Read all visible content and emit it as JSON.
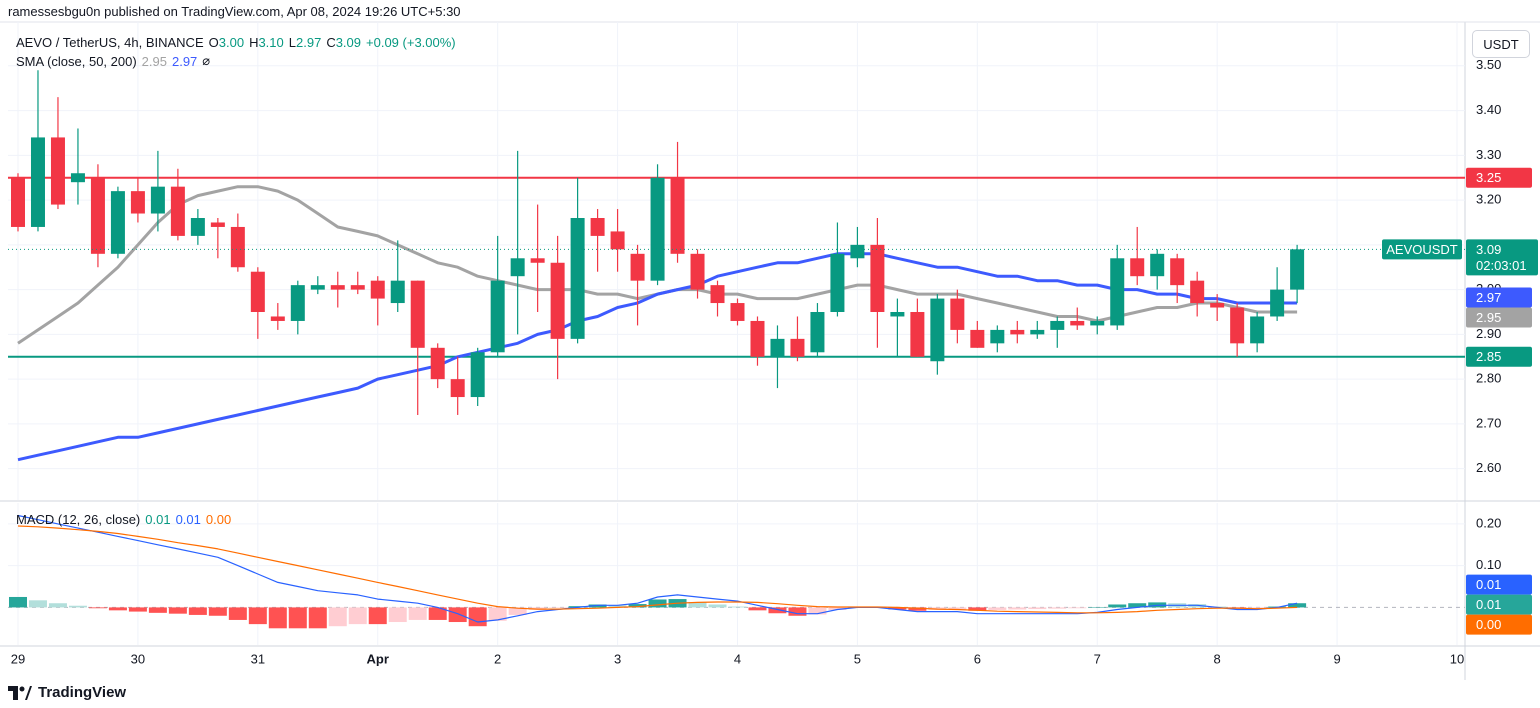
{
  "header": {
    "publisher": "ramessesbgu0n published on TradingView.com, Apr 08, 2024 19:26 UTC+5:30"
  },
  "footer": {
    "brand": "TradingView"
  },
  "chart_data": {
    "type": "candlestick",
    "title": "AEVO / TetherUS, 4h, BINANCE",
    "ohlc_legend": [
      {
        "key": "O",
        "value": "3.00"
      },
      {
        "key": "H",
        "value": "3.10"
      },
      {
        "key": "L",
        "value": "2.97"
      },
      {
        "key": "C",
        "value": "3.09"
      }
    ],
    "change": "+0.09 (+3.00%)",
    "unit": "USDT",
    "up_color": "#089981",
    "down_color": "#f23645",
    "x": [
      0,
      1,
      2,
      3,
      4,
      5,
      6,
      7,
      8,
      9,
      10,
      11,
      12,
      13,
      14,
      15,
      16,
      17,
      18,
      19,
      20,
      21,
      22,
      23,
      24,
      25,
      26,
      27,
      28,
      29,
      30,
      31,
      32,
      33,
      34,
      35,
      36,
      37,
      38,
      39,
      40,
      41,
      42,
      43,
      44,
      45,
      46,
      47,
      48,
      49,
      50,
      51,
      52,
      53,
      54,
      55,
      56,
      57,
      58,
      59,
      60,
      61,
      62,
      63,
      64
    ],
    "xlim": [
      -0.5,
      72.4
    ],
    "xticks": [
      {
        "value": 0,
        "label": "29"
      },
      {
        "value": 6,
        "label": "30"
      },
      {
        "value": 12,
        "label": "31"
      },
      {
        "value": 18,
        "label": "Apr"
      },
      {
        "value": 24,
        "label": "2"
      },
      {
        "value": 30,
        "label": "3"
      },
      {
        "value": 36,
        "label": "4"
      },
      {
        "value": 42,
        "label": "5"
      },
      {
        "value": 48,
        "label": "6"
      },
      {
        "value": 54,
        "label": "7"
      },
      {
        "value": 60,
        "label": "8"
      },
      {
        "value": 66,
        "label": "9"
      },
      {
        "value": 72,
        "label": "10"
      }
    ],
    "open": [
      3.25,
      3.14,
      3.34,
      3.24,
      3.25,
      3.08,
      3.22,
      3.17,
      3.23,
      3.12,
      3.15,
      3.14,
      3.04,
      2.94,
      2.93,
      3.0,
      3.01,
      3.01,
      3.02,
      2.97,
      3.02,
      2.87,
      2.8,
      2.76,
      2.86,
      3.03,
      3.07,
      3.06,
      2.89,
      3.16,
      3.13,
      3.08,
      3.02,
      3.25,
      3.08,
      3.01,
      2.97,
      2.93,
      2.85,
      2.89,
      2.86,
      2.95,
      3.07,
      3.1,
      2.94,
      2.95,
      2.84,
      2.98,
      2.91,
      2.88,
      2.91,
      2.9,
      2.91,
      2.93,
      2.92,
      2.92,
      3.07,
      3.03,
      3.07,
      3.02,
      2.97,
      2.96,
      2.88,
      2.94,
      3.0
    ],
    "high": [
      3.26,
      3.49,
      3.43,
      3.36,
      3.28,
      3.23,
      3.25,
      3.31,
      3.27,
      3.18,
      3.16,
      3.17,
      3.05,
      2.97,
      3.02,
      3.03,
      3.04,
      3.04,
      3.03,
      3.11,
      3.02,
      2.88,
      2.85,
      2.87,
      3.12,
      3.31,
      3.19,
      3.12,
      3.25,
      3.18,
      3.18,
      3.1,
      3.28,
      3.33,
      3.09,
      3.02,
      2.98,
      2.94,
      2.92,
      2.94,
      2.97,
      3.15,
      3.14,
      3.16,
      2.98,
      2.98,
      2.99,
      3.0,
      2.93,
      2.92,
      2.93,
      2.93,
      2.94,
      2.96,
      2.94,
      3.1,
      3.14,
      3.09,
      3.08,
      3.04,
      2.99,
      2.97,
      2.95,
      3.05,
      3.1
    ],
    "low": [
      3.13,
      3.13,
      3.18,
      3.19,
      3.05,
      3.07,
      3.15,
      3.13,
      3.11,
      3.1,
      3.07,
      3.04,
      2.89,
      2.91,
      2.9,
      2.99,
      2.96,
      2.99,
      2.92,
      2.95,
      2.72,
      2.78,
      2.72,
      2.74,
      2.85,
      2.9,
      2.95,
      2.8,
      2.88,
      3.04,
      3.04,
      2.92,
      3.01,
      3.06,
      2.98,
      2.94,
      2.92,
      2.83,
      2.78,
      2.84,
      2.85,
      2.94,
      3.05,
      2.87,
      2.85,
      2.85,
      2.81,
      2.88,
      2.87,
      2.86,
      2.88,
      2.89,
      2.87,
      2.91,
      2.9,
      2.91,
      3.01,
      3.0,
      2.97,
      2.94,
      2.93,
      2.85,
      2.86,
      2.93,
      2.97
    ],
    "close": [
      3.14,
      3.34,
      3.19,
      3.26,
      3.08,
      3.22,
      3.17,
      3.23,
      3.12,
      3.16,
      3.14,
      3.05,
      2.95,
      2.93,
      3.01,
      3.01,
      3.0,
      3.0,
      2.98,
      3.02,
      2.87,
      2.8,
      2.76,
      2.86,
      3.02,
      3.07,
      3.06,
      2.89,
      3.16,
      3.12,
      3.09,
      3.02,
      3.25,
      3.08,
      3.0,
      2.97,
      2.93,
      2.85,
      2.89,
      2.85,
      2.95,
      3.08,
      3.1,
      2.95,
      2.95,
      2.85,
      2.98,
      2.91,
      2.87,
      2.91,
      2.9,
      2.91,
      2.93,
      2.92,
      2.93,
      3.07,
      3.03,
      3.08,
      3.01,
      2.97,
      2.96,
      2.88,
      2.94,
      3.0,
      3.09
    ],
    "ylim": [
      2.53,
      3.58
    ],
    "yticks": [
      {
        "value": 2.6,
        "label": "2.60"
      },
      {
        "value": 2.7,
        "label": "2.70"
      },
      {
        "value": 2.8,
        "label": "2.80"
      },
      {
        "value": 2.9,
        "label": "2.90"
      },
      {
        "value": 3.0,
        "label": "3.00"
      },
      {
        "value": 3.1,
        "label": "3.10"
      },
      {
        "value": 3.2,
        "label": "3.20"
      },
      {
        "value": 3.3,
        "label": "3.30"
      },
      {
        "value": 3.4,
        "label": "3.40"
      },
      {
        "value": 3.5,
        "label": "3.50"
      }
    ],
    "grid": true,
    "last_price_tag": {
      "symbol": "AEVOUSDT",
      "price": "3.09",
      "countdown": "02:03:01"
    },
    "indicator": {
      "title": "SMA (close, 50, 200)",
      "values_text": [
        "2.95",
        "2.97"
      ],
      "icon": "⌀"
    },
    "series": [
      {
        "color": "#a3a3a3",
        "last_label": "2.95",
        "values": [
          2.88,
          2.91,
          2.94,
          2.97,
          3.01,
          3.05,
          3.1,
          3.15,
          3.19,
          3.21,
          3.22,
          3.23,
          3.23,
          3.22,
          3.2,
          3.17,
          3.14,
          3.13,
          3.12,
          3.1,
          3.08,
          3.06,
          3.05,
          3.03,
          3.02,
          3.01,
          3.0,
          3.0,
          3.0,
          2.99,
          2.99,
          2.98,
          2.99,
          3.0,
          3.0,
          2.99,
          2.99,
          2.98,
          2.98,
          2.98,
          2.99,
          3.0,
          3.01,
          3.01,
          3.0,
          2.99,
          2.99,
          2.99,
          2.98,
          2.97,
          2.96,
          2.95,
          2.94,
          2.94,
          2.93,
          2.94,
          2.95,
          2.96,
          2.96,
          2.97,
          2.97,
          2.96,
          2.95,
          2.95,
          2.95
        ]
      },
      {
        "color": "#3d5afe",
        "last_label": "2.97",
        "values": [
          2.62,
          2.63,
          2.64,
          2.65,
          2.66,
          2.67,
          2.67,
          2.68,
          2.69,
          2.7,
          2.71,
          2.72,
          2.73,
          2.74,
          2.75,
          2.76,
          2.77,
          2.78,
          2.8,
          2.81,
          2.82,
          2.83,
          2.85,
          2.86,
          2.87,
          2.88,
          2.9,
          2.91,
          2.93,
          2.94,
          2.96,
          2.97,
          2.99,
          3.0,
          3.01,
          3.03,
          3.04,
          3.05,
          3.06,
          3.06,
          3.07,
          3.08,
          3.08,
          3.08,
          3.07,
          3.06,
          3.05,
          3.05,
          3.04,
          3.03,
          3.03,
          3.02,
          3.02,
          3.01,
          3.01,
          3.0,
          3.0,
          2.99,
          2.99,
          2.98,
          2.98,
          2.97,
          2.97,
          2.97,
          2.97
        ]
      }
    ],
    "hlines": [
      {
        "value": 3.25,
        "label": "3.25",
        "color": "#f23645"
      },
      {
        "value": 2.85,
        "label": "2.85",
        "color": "#089981"
      }
    ],
    "macd": {
      "title": "MACD (12, 26, close)",
      "legend_values": [
        "0.01",
        "0.01",
        "0.00"
      ],
      "ylim": [
        -0.09,
        0.25
      ],
      "yticks": [
        {
          "value": 0.1,
          "label": "0.10"
        },
        {
          "value": 0.2,
          "label": "0.20"
        }
      ],
      "histogram": {
        "last_label": "0.01",
        "colors": [
          "#26a69a",
          "#b2dfdb",
          "#ff5252",
          "#ffcdd2"
        ],
        "values": [
          0.025,
          0.017,
          0.01,
          0.004,
          -0.002,
          -0.007,
          -0.01,
          -0.013,
          -0.015,
          -0.018,
          -0.02,
          -0.03,
          -0.04,
          -0.05,
          -0.05,
          -0.05,
          -0.045,
          -0.04,
          -0.04,
          -0.035,
          -0.03,
          -0.03,
          -0.035,
          -0.045,
          -0.032,
          -0.018,
          -0.006,
          -0.001,
          0.003,
          0.007,
          0.005,
          0.008,
          0.019,
          0.02,
          0.013,
          0.007,
          0.002,
          -0.007,
          -0.014,
          -0.02,
          -0.017,
          -0.006,
          -0.001,
          -0.001,
          -0.005,
          -0.008,
          -0.006,
          -0.005,
          -0.008,
          -0.006,
          -0.005,
          -0.004,
          -0.003,
          -0.002,
          0.001,
          0.007,
          0.01,
          0.012,
          0.01,
          0.008,
          0.002,
          -0.003,
          -0.002,
          0.002,
          0.01
        ]
      },
      "line": {
        "color": "#2962ff",
        "last_label": "0.01",
        "values": [
          0.22,
          0.21,
          0.2,
          0.19,
          0.18,
          0.17,
          0.16,
          0.15,
          0.14,
          0.13,
          0.12,
          0.1,
          0.08,
          0.06,
          0.05,
          0.04,
          0.035,
          0.03,
          0.02,
          0.015,
          0.01,
          0.0,
          -0.015,
          -0.035,
          -0.03,
          -0.02,
          -0.01,
          -0.005,
          0.0,
          0.005,
          0.005,
          0.01,
          0.025,
          0.03,
          0.025,
          0.02,
          0.015,
          0.005,
          -0.005,
          -0.015,
          -0.015,
          -0.005,
          0.0,
          0.0,
          -0.005,
          -0.01,
          -0.01,
          -0.01,
          -0.015,
          -0.015,
          -0.015,
          -0.015,
          -0.015,
          -0.015,
          -0.012,
          -0.005,
          0.0,
          0.005,
          0.005,
          0.005,
          0.0,
          -0.005,
          -0.005,
          0.0,
          0.01
        ]
      },
      "signal": {
        "color": "#ff6d00",
        "last_label": "0.00",
        "values": [
          0.195,
          0.193,
          0.19,
          0.186,
          0.182,
          0.177,
          0.17,
          0.163,
          0.155,
          0.148,
          0.14,
          0.13,
          0.12,
          0.11,
          0.1,
          0.09,
          0.08,
          0.07,
          0.06,
          0.05,
          0.04,
          0.03,
          0.02,
          0.01,
          0.002,
          -0.002,
          -0.004,
          -0.004,
          -0.003,
          -0.002,
          0.0,
          0.002,
          0.006,
          0.01,
          0.012,
          0.013,
          0.013,
          0.012,
          0.009,
          0.005,
          0.002,
          0.001,
          0.001,
          0.001,
          0.0,
          -0.002,
          -0.004,
          -0.005,
          -0.007,
          -0.009,
          -0.01,
          -0.011,
          -0.012,
          -0.013,
          -0.013,
          -0.012,
          -0.01,
          -0.007,
          -0.005,
          -0.003,
          -0.002,
          -0.002,
          -0.003,
          -0.002,
          0.0
        ]
      }
    }
  }
}
